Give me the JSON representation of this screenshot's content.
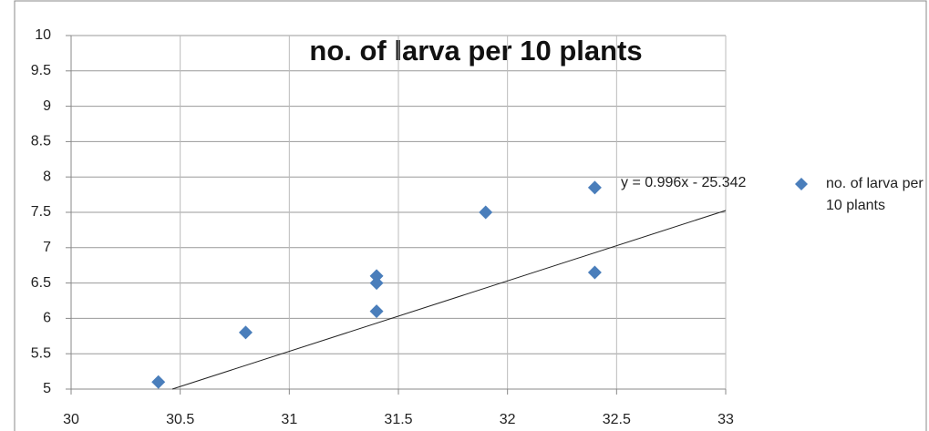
{
  "chart_data": {
    "type": "scatter",
    "title": "no. of larva per 10 plants",
    "series": [
      {
        "name": "no. of larva per 10 plants",
        "color": "#4a7ebb",
        "x": [
          30.4,
          30.8,
          31.4,
          31.4,
          31.4,
          31.9,
          32.4,
          32.4
        ],
        "values": [
          5.1,
          5.8,
          6.6,
          6.5,
          6.1,
          7.5,
          7.85,
          6.65
        ]
      }
    ],
    "trendline": {
      "label": "y = 0.996x - 25.342",
      "slope": 0.996,
      "intercept": -25.342
    },
    "xlim": [
      30,
      33
    ],
    "xticks": [
      30,
      30.5,
      31,
      31.5,
      32,
      32.5,
      33
    ],
    "ylim": [
      5,
      10
    ],
    "yticks": [
      5,
      5.5,
      6,
      6.5,
      7,
      7.5,
      8,
      8.5,
      9,
      9.5,
      10
    ],
    "grid": true,
    "legend": "right"
  }
}
